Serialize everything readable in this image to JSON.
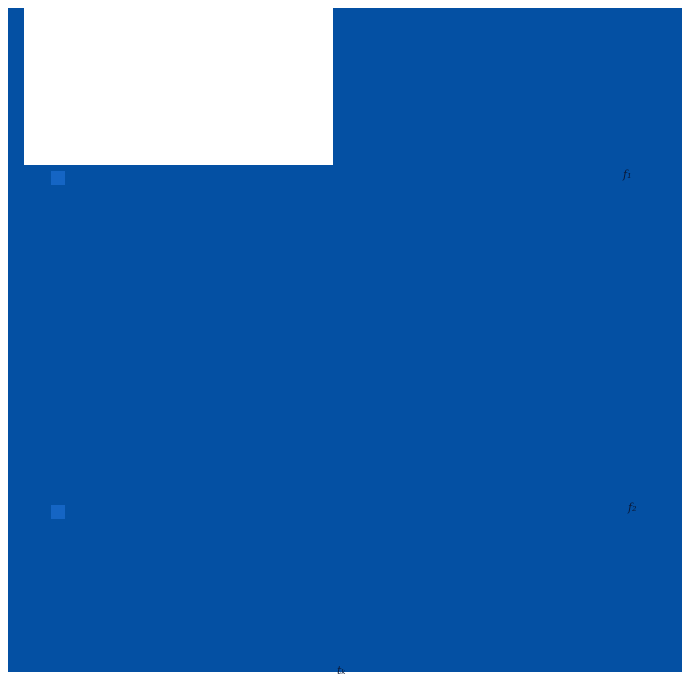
{
  "figure": {
    "background_color": "#ffffff",
    "field_color": "#0450a3",
    "marker_color": "#1565c4",
    "label_color": "#0a1836",
    "panel_1_label": "f₁",
    "panel_2_label": "f₂",
    "x_axis_label": "tₖ"
  },
  "chart_data": {
    "type": "area",
    "title": "",
    "xlabel": "tₖ",
    "ylabel": "",
    "legend_position": "none",
    "grid": false,
    "panels": [
      {
        "right_edge_label": "f₁",
        "fill": "solid uniform blue (#0450a3)",
        "unfilled_region": "white rectangle at top-left of panel (approx. x 24-333 px, y 0-165 px)",
        "left_marker": "small lighter-blue square at x≈51px, y≈171px"
      },
      {
        "right_edge_label": "f₂",
        "fill": "solid uniform blue (#0450a3)",
        "left_marker": "small lighter-blue square at x≈51px, y≈505px"
      }
    ],
    "notes": "No visible tick labels, gridlines, numeric data labels, or legend text anywhere in the figure; the plotted content renders as one uniform solid blue field spanning both stacked panels."
  }
}
